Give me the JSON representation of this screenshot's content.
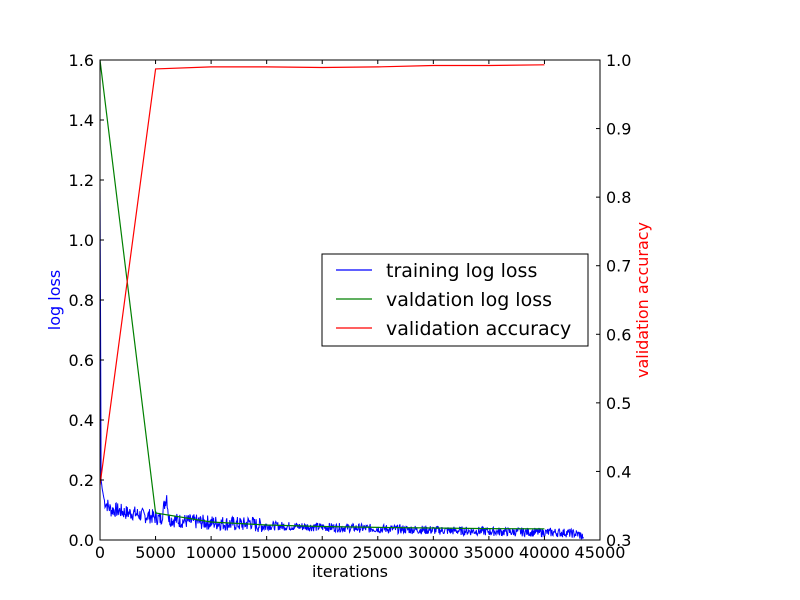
{
  "chart_data": {
    "type": "line",
    "xlabel": "iterations",
    "ylabel_left": "log loss",
    "ylabel_right": "validation accuracy",
    "xlim": [
      0,
      45000
    ],
    "ylim_left": [
      0,
      1.6
    ],
    "ylim_right": [
      0.3,
      1.0
    ],
    "x_ticks": [
      "0",
      "5000",
      "10000",
      "15000",
      "20000",
      "25000",
      "30000",
      "35000",
      "40000",
      "45000"
    ],
    "y_left_ticks": [
      "0.0",
      "0.2",
      "0.4",
      "0.6",
      "0.8",
      "1.0",
      "1.2",
      "1.4",
      "1.6"
    ],
    "y_right_ticks": [
      "0.3",
      "0.4",
      "0.5",
      "0.6",
      "0.7",
      "0.8",
      "0.9",
      "1.0"
    ],
    "grid": false,
    "legend_position": "center-right",
    "series": [
      {
        "name": "training log loss",
        "axis": "left",
        "color": "#0000ff",
        "x": [
          0,
          100,
          200,
          300,
          400,
          600,
          800,
          1000,
          1500,
          2000,
          2500,
          3000,
          3500,
          4000,
          4500,
          5000,
          5500,
          6000,
          6200,
          6500,
          7000,
          8000,
          9000,
          10000,
          11000,
          12000,
          13000,
          13500,
          14000,
          15000,
          16000,
          17000,
          18000,
          19000,
          20000,
          21000,
          22000,
          23000,
          24000,
          25000,
          26000,
          27000,
          28000,
          29000,
          30000,
          31000,
          32000,
          33000,
          34000,
          35000,
          36000,
          37000,
          38000,
          39000,
          40000,
          41000,
          42000,
          43000,
          43500
        ],
        "y": [
          1.2,
          0.2,
          0.17,
          0.15,
          0.13,
          0.12,
          0.11,
          0.1,
          0.1,
          0.095,
          0.09,
          0.09,
          0.085,
          0.08,
          0.08,
          0.075,
          0.07,
          0.15,
          0.07,
          0.068,
          0.065,
          0.062,
          0.06,
          0.058,
          0.056,
          0.054,
          0.052,
          0.06,
          0.05,
          0.048,
          0.047,
          0.046,
          0.045,
          0.044,
          0.043,
          0.042,
          0.041,
          0.04,
          0.039,
          0.038,
          0.037,
          0.036,
          0.035,
          0.034,
          0.033,
          0.032,
          0.031,
          0.03,
          0.03,
          0.029,
          0.028,
          0.027,
          0.027,
          0.026,
          0.025,
          0.025,
          0.024,
          0.02,
          0.01
        ],
        "noise": true
      },
      {
        "name": "valdation log loss",
        "axis": "left",
        "color": "#008000",
        "x": [
          0,
          5000,
          10000,
          15000,
          20000,
          25000,
          30000,
          35000,
          40000
        ],
        "y": [
          1.6,
          0.09,
          0.06,
          0.05,
          0.045,
          0.042,
          0.04,
          0.038,
          0.037
        ]
      },
      {
        "name": "validation accuracy",
        "axis": "right",
        "color": "#ff0000",
        "x": [
          0,
          5000,
          10000,
          15000,
          20000,
          25000,
          30000,
          35000,
          40000
        ],
        "y": [
          0.38,
          0.987,
          0.99,
          0.99,
          0.989,
          0.99,
          0.992,
          0.992,
          0.993
        ]
      }
    ]
  }
}
